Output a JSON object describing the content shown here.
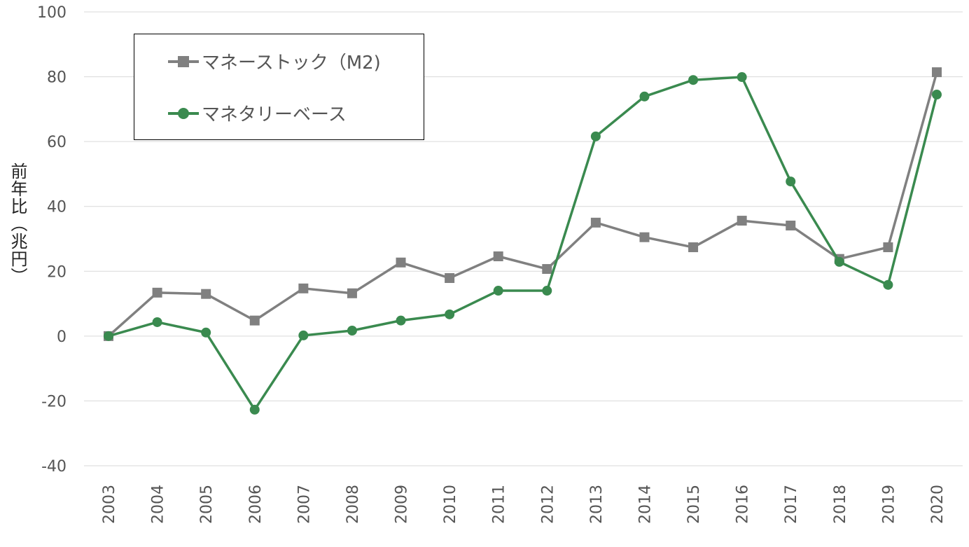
{
  "chart_data": {
    "type": "line",
    "title": "",
    "xlabel": "",
    "ylabel": "前年比（兆円）",
    "ylim": [
      -40,
      100
    ],
    "yticks": [
      "100",
      "80",
      "60",
      "40",
      "20",
      "0",
      "-20",
      "-40"
    ],
    "grid": true,
    "legend_placement": "top-left",
    "categories": [
      "2003",
      "2004",
      "2005",
      "2006",
      "2007",
      "2008",
      "2009",
      "2010",
      "2011",
      "2012",
      "2013",
      "2014",
      "2015",
      "2016",
      "2017",
      "2018",
      "2019",
      "2020"
    ],
    "series": [
      {
        "name": "マネーストック（M2)",
        "color": "#808080",
        "marker": "square",
        "values": [
          0,
          13.4,
          13.0,
          4.8,
          14.7,
          13.2,
          22.7,
          17.9,
          24.6,
          20.7,
          35.0,
          30.5,
          27.4,
          35.6,
          34.1,
          23.8,
          27.4,
          81.4
        ]
      },
      {
        "name": "マネタリーベース",
        "color": "#3a8a4f",
        "marker": "circle",
        "values": [
          0,
          4.3,
          1.1,
          -22.7,
          0.2,
          1.7,
          4.8,
          6.7,
          14.0,
          14.0,
          61.6,
          73.9,
          79.0,
          79.9,
          47.7,
          22.9,
          15.8,
          74.5
        ]
      }
    ]
  }
}
